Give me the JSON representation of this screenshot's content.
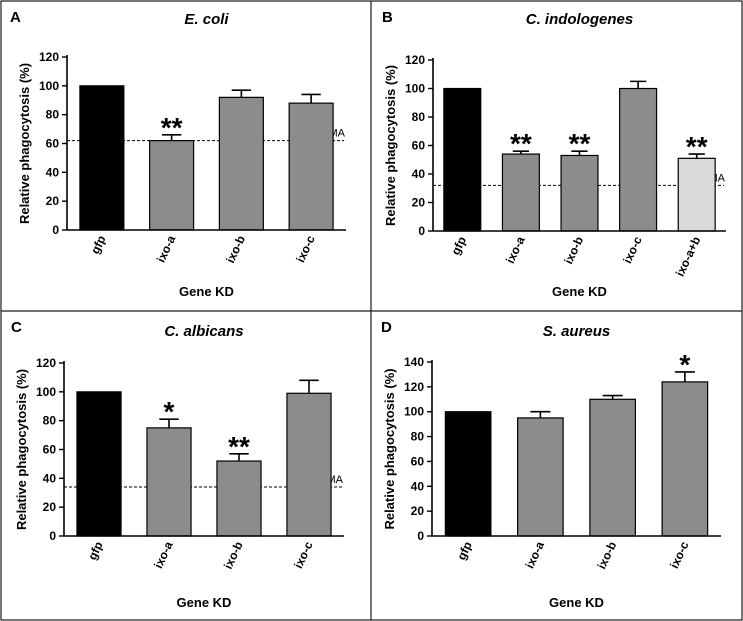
{
  "figure": {
    "colors": {
      "control": "#000000",
      "knockdown": "#8c8c8c",
      "double": "#d9d9d9",
      "border": "#1a1a1a"
    }
  },
  "chart_data": [
    {
      "id": "A",
      "panel_letter": "A",
      "type": "bar",
      "title": "E. coli",
      "xlabel": "Gene KD",
      "ylabel": "Relative phagocytosis (%)",
      "ylim": [
        0,
        120
      ],
      "yticks": [
        "0",
        "20",
        "40",
        "60",
        "80",
        "100",
        "120"
      ],
      "categories": [
        "gfp",
        "ixo-a",
        "ixo-b",
        "ixo-c"
      ],
      "values": [
        100,
        62,
        92,
        88
      ],
      "errors": [
        0,
        4,
        5,
        6
      ],
      "fills": [
        "control",
        "knockdown",
        "knockdown",
        "knockdown"
      ],
      "significance": [
        "",
        "**",
        "",
        ""
      ],
      "reference": {
        "label": "MA",
        "value": 62
      }
    },
    {
      "id": "B",
      "panel_letter": "B",
      "type": "bar",
      "title": "C. indologenes",
      "xlabel": "Gene KD",
      "ylabel": "Relative phagocytosis (%)",
      "ylim": [
        0,
        120
      ],
      "yticks": [
        "0",
        "20",
        "40",
        "60",
        "80",
        "100",
        "120"
      ],
      "categories": [
        "gfp",
        "ixo-a",
        "ixo-b",
        "ixo-c",
        "ixo-a+b"
      ],
      "values": [
        100,
        54,
        53,
        100,
        51
      ],
      "errors": [
        0,
        2,
        3,
        5,
        3
      ],
      "fills": [
        "control",
        "knockdown",
        "knockdown",
        "knockdown",
        "double"
      ],
      "significance": [
        "",
        "**",
        "**",
        "",
        "**"
      ],
      "reference": {
        "label": "MA",
        "value": 32
      }
    },
    {
      "id": "C",
      "panel_letter": "C",
      "type": "bar",
      "title": "C. albicans",
      "xlabel": "Gene KD",
      "ylabel": "Relative phagocytosis (%)",
      "ylim": [
        0,
        120
      ],
      "yticks": [
        "0",
        "20",
        "40",
        "60",
        "80",
        "100",
        "120"
      ],
      "categories": [
        "gfp",
        "ixo-a",
        "ixo-b",
        "ixo-c"
      ],
      "values": [
        100,
        75,
        52,
        99
      ],
      "errors": [
        0,
        6,
        5,
        9
      ],
      "fills": [
        "control",
        "knockdown",
        "knockdown",
        "knockdown"
      ],
      "significance": [
        "",
        "*",
        "**",
        ""
      ],
      "reference": {
        "label": "MA",
        "value": 34
      }
    },
    {
      "id": "D",
      "panel_letter": "D",
      "type": "bar",
      "title": "S. aureus",
      "xlabel": "Gene KD",
      "ylabel": "Relative phagocytosis (%)",
      "ylim": [
        0,
        140
      ],
      "yticks": [
        "0",
        "20",
        "40",
        "60",
        "80",
        "100",
        "120",
        "140"
      ],
      "categories": [
        "gfp",
        "ixo-a",
        "ixo-b",
        "ixo-c"
      ],
      "values": [
        100,
        95,
        110,
        124
      ],
      "errors": [
        0,
        5,
        3,
        8
      ],
      "fills": [
        "control",
        "knockdown",
        "knockdown",
        "knockdown"
      ],
      "significance": [
        "",
        "",
        "",
        "*"
      ],
      "reference": null
    }
  ]
}
